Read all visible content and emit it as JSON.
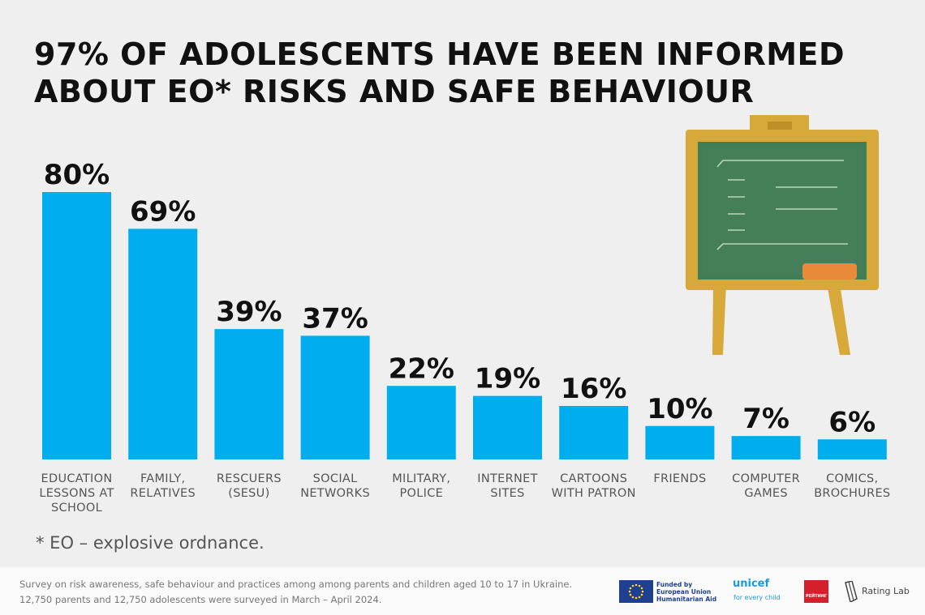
{
  "title": "97% OF ADOLESCENTS HAVE BEEN INFORMED ABOUT EO* RISKS AND SAFE BEHAVIOUR",
  "chart_data": {
    "type": "bar",
    "title": "97% OF ADOLESCENTS HAVE BEEN INFORMED ABOUT EO* RISKS AND SAFE BEHAVIOUR",
    "categories": [
      [
        "EDUCATION",
        "LESSONS AT",
        "SCHOOL"
      ],
      [
        "FAMILY,",
        "RELATIVES"
      ],
      [
        "RESCUERS",
        "(SESU)"
      ],
      [
        "SOCIAL",
        "NETWORKS"
      ],
      [
        "MILITARY,",
        "POLICE"
      ],
      [
        "INTERNET",
        "SITES"
      ],
      [
        "CARTOONS",
        "WITH PATRON"
      ],
      [
        "FRIENDS"
      ],
      [
        "COMPUTER",
        "GAMES"
      ],
      [
        "COMICS,",
        "BROCHURES"
      ]
    ],
    "values": [
      80,
      69,
      39,
      37,
      22,
      19,
      16,
      10,
      7,
      6
    ],
    "value_labels": [
      "80%",
      "69%",
      "39%",
      "37%",
      "22%",
      "19%",
      "16%",
      "10%",
      "7%",
      "6%"
    ],
    "unit": "%",
    "bar_color": "#00adee",
    "xlabel": "",
    "ylabel": "",
    "grid": false
  },
  "footnote": "* EO – explosive ordnance.",
  "source": {
    "line1": "Survey on risk awareness, safe behaviour and practices among among parents and children aged 10 to 17 in Ukraine.",
    "line2": "12,750 parents and 12,750 adolescents were surveyed in March – April 2024."
  },
  "logos": {
    "eu": "Funded by\nEuropean Union\nHumanitarian Aid",
    "unicef_name": "unicef",
    "unicef_tagline": "for every child",
    "reiting": "РЕЙТИНГ",
    "ratinglab": "Rating Lab"
  },
  "illustration": "chalkboard-icon",
  "colors": {
    "bar": "#00adee",
    "background": "#efefef",
    "title": "#111111",
    "board_frame": "#d7a93a",
    "board_surface": "#3f7e57",
    "eraser": "#e98a3a"
  }
}
